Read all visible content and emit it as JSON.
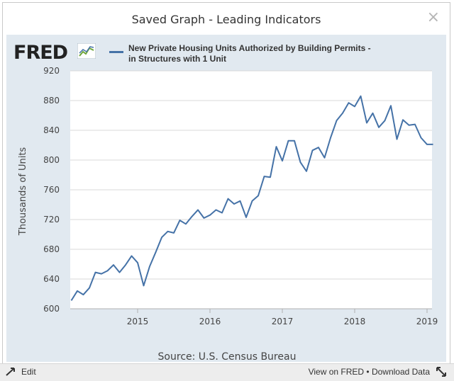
{
  "dialog": {
    "title": "Saved Graph - Leading Indicators",
    "close_label": "×"
  },
  "logo": {
    "text": "FRED"
  },
  "legend": {
    "line1": "New Private Housing Units Authorized by Building Permits -",
    "line2": "in Structures with 1 Unit",
    "color": "#4572a7"
  },
  "source": "Source: U.S. Census Bureau",
  "footer": {
    "edit_label": "Edit",
    "view_label": "View on FRED",
    "separator": "•",
    "download_label": "Download Data"
  },
  "chart_data": {
    "type": "line",
    "ylabel": "Thousands of Units",
    "ylim": [
      600,
      920
    ],
    "yticks": [
      "600",
      "640",
      "680",
      "720",
      "760",
      "800",
      "840",
      "880",
      "920"
    ],
    "xticks": [
      "2015",
      "2016",
      "2017",
      "2018",
      "2019"
    ],
    "grid": true,
    "series": [
      {
        "color": "#4572a7",
        "x": [
          "2014-02",
          "2014-03",
          "2014-04",
          "2014-05",
          "2014-06",
          "2014-07",
          "2014-08",
          "2014-09",
          "2014-10",
          "2014-11",
          "2014-12",
          "2015-01",
          "2015-02",
          "2015-03",
          "2015-04",
          "2015-05",
          "2015-06",
          "2015-07",
          "2015-08",
          "2015-09",
          "2015-10",
          "2015-11",
          "2015-12",
          "2016-01",
          "2016-02",
          "2016-03",
          "2016-04",
          "2016-05",
          "2016-06",
          "2016-07",
          "2016-08",
          "2016-09",
          "2016-10",
          "2016-11",
          "2016-12",
          "2017-01",
          "2017-02",
          "2017-03",
          "2017-04",
          "2017-05",
          "2017-06",
          "2017-07",
          "2017-08",
          "2017-09",
          "2017-10",
          "2017-11",
          "2017-12",
          "2018-01",
          "2018-02",
          "2018-03",
          "2018-04",
          "2018-05",
          "2018-06",
          "2018-07",
          "2018-08",
          "2018-09",
          "2018-10",
          "2018-11",
          "2018-12",
          "2019-01",
          "2019-02"
        ],
        "values": [
          611,
          624,
          619,
          628,
          649,
          647,
          651,
          659,
          649,
          659,
          671,
          662,
          631,
          657,
          676,
          696,
          704,
          702,
          719,
          714,
          724,
          733,
          722,
          726,
          733,
          729,
          748,
          741,
          745,
          723,
          745,
          752,
          778,
          777,
          818,
          799,
          826,
          826,
          797,
          785,
          813,
          817,
          803,
          830,
          853,
          863,
          877,
          872,
          886,
          850,
          863,
          844,
          853,
          873,
          828,
          854,
          847,
          848,
          830,
          821,
          821
        ]
      }
    ]
  }
}
